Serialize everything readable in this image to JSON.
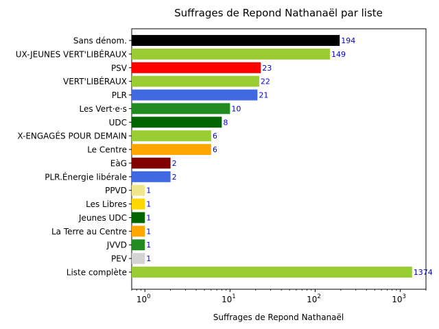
{
  "chart_data": {
    "type": "bar",
    "orientation": "horizontal",
    "title": "Suffrages de Repond Nathanaël par liste",
    "xlabel": "Suffrages de Repond Nathanaël",
    "ylabel": "",
    "xscale": "log",
    "xlim": [
      0.7,
      2000
    ],
    "xticks": [
      {
        "value": 1,
        "base": "10",
        "exp": "0"
      },
      {
        "value": 10,
        "base": "10",
        "exp": "1"
      },
      {
        "value": 100,
        "base": "10",
        "exp": "2"
      },
      {
        "value": 1000,
        "base": "10",
        "exp": "3"
      }
    ],
    "grid": false,
    "bars": [
      {
        "label": "Sans dénom.",
        "value": 194,
        "color": "#000000"
      },
      {
        "label": "UX-JEUNES VERT'LIBÉRAUX",
        "value": 149,
        "color": "#9acd32"
      },
      {
        "label": "PSV",
        "value": 23,
        "color": "#ff0000"
      },
      {
        "label": "VERT'LIBÉRAUX",
        "value": 22,
        "color": "#9acd32"
      },
      {
        "label": "PLR",
        "value": 21,
        "color": "#4169e1"
      },
      {
        "label": "Les Vert·e·s",
        "value": 10,
        "color": "#228b22"
      },
      {
        "label": "UDC",
        "value": 8,
        "color": "#006400"
      },
      {
        "label": "X-ENGAGÉS POUR DEMAIN",
        "value": 6,
        "color": "#9acd32"
      },
      {
        "label": "Le Centre",
        "value": 6,
        "color": "#ffa500"
      },
      {
        "label": "EàG",
        "value": 2,
        "color": "#800000"
      },
      {
        "label": "PLR.Énergie libérale",
        "value": 2,
        "color": "#4169e1"
      },
      {
        "label": "PPVD",
        "value": 1,
        "color": "#f0e68c"
      },
      {
        "label": "Les Libres",
        "value": 1,
        "color": "#ffd700"
      },
      {
        "label": "Jeunes UDC",
        "value": 1,
        "color": "#006400"
      },
      {
        "label": "La Terre au Centre",
        "value": 1,
        "color": "#ffa500"
      },
      {
        "label": "JVVD",
        "value": 1,
        "color": "#228b22"
      },
      {
        "label": "PEV",
        "value": 1,
        "color": "#d3d3d3"
      },
      {
        "label": "Liste complète",
        "value": 1374,
        "color": "#9acd32"
      }
    ]
  }
}
